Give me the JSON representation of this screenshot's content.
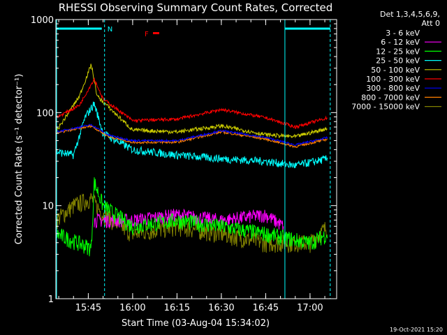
{
  "chart_data": {
    "type": "line",
    "title": "RHESSI Observing Summary Count Rates, Corrected",
    "ylabel": "Corrected Count Rate (s⁻¹ detector⁻¹)",
    "xlabel": "Start Time (03-Aug-04 15:34:02)",
    "y_scale": "log",
    "ylim": [
      1,
      1000
    ],
    "y_ticks": [
      {
        "value": 1,
        "label": "1"
      },
      {
        "value": 10,
        "label": "10"
      },
      {
        "value": 100,
        "label": "100"
      },
      {
        "value": 1000,
        "label": "1000"
      }
    ],
    "x_ticks": [
      {
        "value": "15:45",
        "label": "15:45"
      },
      {
        "value": "16:00",
        "label": "16:00"
      },
      {
        "value": "16:15",
        "label": "16:15"
      },
      {
        "value": "16:30",
        "label": "16:30"
      },
      {
        "value": "16:45",
        "label": "16:45"
      },
      {
        "value": "17:00",
        "label": "17:00"
      }
    ],
    "xlim": [
      "15:34:02",
      "17:09"
    ],
    "grid": false,
    "legend_position": "right",
    "legend_header": [
      "Det 1,3,4,5,6,9,",
      "Att 0"
    ],
    "series": [
      {
        "name": "3 - 6 keV",
        "color": "#000000"
      },
      {
        "name": "6 - 12 keV",
        "color": "#ff00ff"
      },
      {
        "name": "12 - 25 keV",
        "color": "#00ff00"
      },
      {
        "name": "25 - 50 keV",
        "color": "#00ffff"
      },
      {
        "name": "50 - 100 keV",
        "color": "#cccc00"
      },
      {
        "name": "100 - 300 keV",
        "color": "#ff0000"
      },
      {
        "name": "300 - 800 keV",
        "color": "#0000ff"
      },
      {
        "name": "800 - 7000 keV",
        "color": "#ff8000"
      },
      {
        "name": "7000 - 15000 keV",
        "color": "#808000"
      }
    ],
    "annotations": [
      {
        "text": "N",
        "color": "#00ffff"
      },
      {
        "text": "F",
        "color": "#ff0000"
      }
    ]
  },
  "footer": {
    "timestamp": "19-Oct-2021 15:20"
  }
}
